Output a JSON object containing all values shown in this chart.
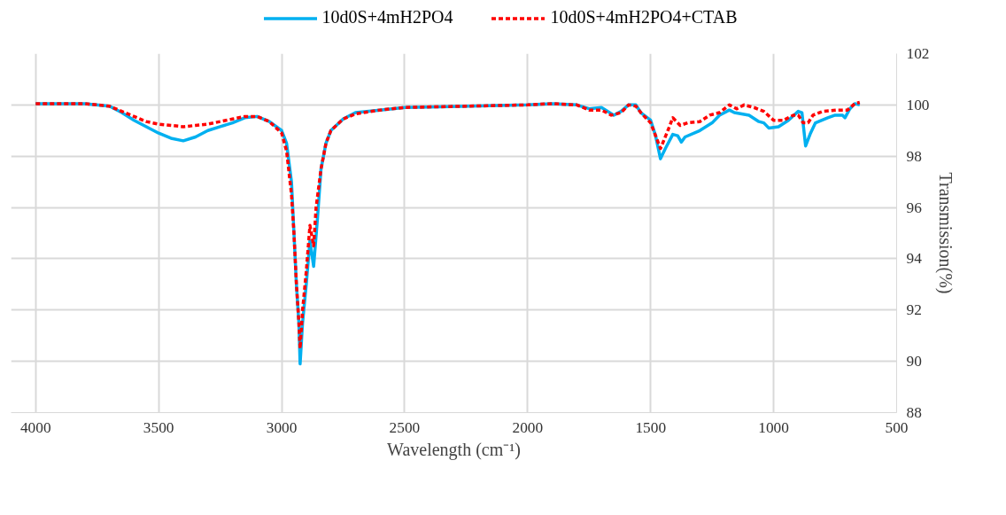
{
  "chart_data": {
    "type": "line",
    "xlabel": "Wavelength (cm⁻¹)",
    "ylabel": "Transmission(%)",
    "xlim": [
      4100,
      500
    ],
    "xticks": [
      4000,
      3500,
      3000,
      2500,
      2000,
      1500,
      1000,
      500
    ],
    "ylim": [
      88,
      102
    ],
    "yticks": [
      88,
      90,
      92,
      94,
      96,
      98,
      100,
      102
    ],
    "grid": true,
    "legend": "top",
    "series": [
      {
        "name": "10d0S+4mH2PO4",
        "color": "#00b0f0",
        "line_style": "solid",
        "x": [
          4000,
          3800,
          3700,
          3650,
          3600,
          3500,
          3450,
          3400,
          3350,
          3300,
          3250,
          3200,
          3150,
          3100,
          3050,
          3000,
          2980,
          2960,
          2950,
          2940,
          2930,
          2925,
          2915,
          2900,
          2885,
          2870,
          2855,
          2840,
          2820,
          2800,
          2750,
          2700,
          2600,
          2500,
          2000,
          1900,
          1800,
          1750,
          1700,
          1650,
          1620,
          1590,
          1560,
          1540,
          1500,
          1480,
          1460,
          1440,
          1410,
          1390,
          1375,
          1360,
          1300,
          1250,
          1220,
          1180,
          1160,
          1100,
          1060,
          1040,
          1020,
          980,
          940,
          900,
          885,
          870,
          850,
          830,
          780,
          750,
          720,
          710,
          690,
          670,
          650
        ],
        "values": [
          100.05,
          100.05,
          99.95,
          99.7,
          99.4,
          98.9,
          98.7,
          98.6,
          98.75,
          99.0,
          99.15,
          99.3,
          99.5,
          99.55,
          99.35,
          99.0,
          98.5,
          97.0,
          95.0,
          93.0,
          91.5,
          89.9,
          91.5,
          93.0,
          94.7,
          93.7,
          95.5,
          97.5,
          98.5,
          99.0,
          99.45,
          99.7,
          99.8,
          99.9,
          100.0,
          100.05,
          100.0,
          99.85,
          99.9,
          99.6,
          99.75,
          100.0,
          100.0,
          99.7,
          99.4,
          98.8,
          97.9,
          98.3,
          98.85,
          98.8,
          98.55,
          98.75,
          99.0,
          99.3,
          99.6,
          99.8,
          99.7,
          99.6,
          99.35,
          99.3,
          99.1,
          99.15,
          99.4,
          99.75,
          99.7,
          98.4,
          98.9,
          99.3,
          99.5,
          99.6,
          99.6,
          99.5,
          99.85,
          100.05,
          100.0
        ]
      },
      {
        "name": "10d0S+4mH2PO4+CTAB",
        "color": "#ff0000",
        "line_style": "dashed",
        "x": [
          4000,
          3800,
          3700,
          3650,
          3600,
          3550,
          3500,
          3450,
          3400,
          3350,
          3300,
          3250,
          3200,
          3150,
          3100,
          3050,
          3000,
          2980,
          2960,
          2950,
          2940,
          2930,
          2925,
          2915,
          2900,
          2885,
          2870,
          2860,
          2840,
          2820,
          2800,
          2750,
          2700,
          2600,
          2500,
          2000,
          1900,
          1800,
          1750,
          1700,
          1660,
          1620,
          1590,
          1560,
          1540,
          1500,
          1480,
          1460,
          1430,
          1410,
          1380,
          1350,
          1300,
          1260,
          1220,
          1180,
          1150,
          1120,
          1080,
          1040,
          1000,
          960,
          920,
          900,
          880,
          860,
          840,
          800,
          740,
          700,
          670,
          650
        ],
        "values": [
          100.05,
          100.05,
          99.95,
          99.75,
          99.55,
          99.35,
          99.25,
          99.2,
          99.15,
          99.2,
          99.25,
          99.35,
          99.45,
          99.55,
          99.55,
          99.35,
          98.9,
          98.2,
          96.5,
          95.0,
          93.0,
          91.5,
          90.5,
          92.0,
          93.5,
          95.3,
          94.5,
          96.0,
          97.5,
          98.5,
          99.0,
          99.45,
          99.65,
          99.8,
          99.9,
          100.0,
          100.05,
          100.0,
          99.8,
          99.8,
          99.6,
          99.7,
          100.0,
          99.95,
          99.7,
          99.3,
          98.8,
          98.3,
          99.0,
          99.5,
          99.2,
          99.3,
          99.35,
          99.6,
          99.7,
          100.0,
          99.85,
          100.0,
          99.9,
          99.75,
          99.4,
          99.4,
          99.6,
          99.6,
          99.3,
          99.3,
          99.6,
          99.75,
          99.8,
          99.8,
          100.05,
          100.1
        ]
      }
    ]
  }
}
